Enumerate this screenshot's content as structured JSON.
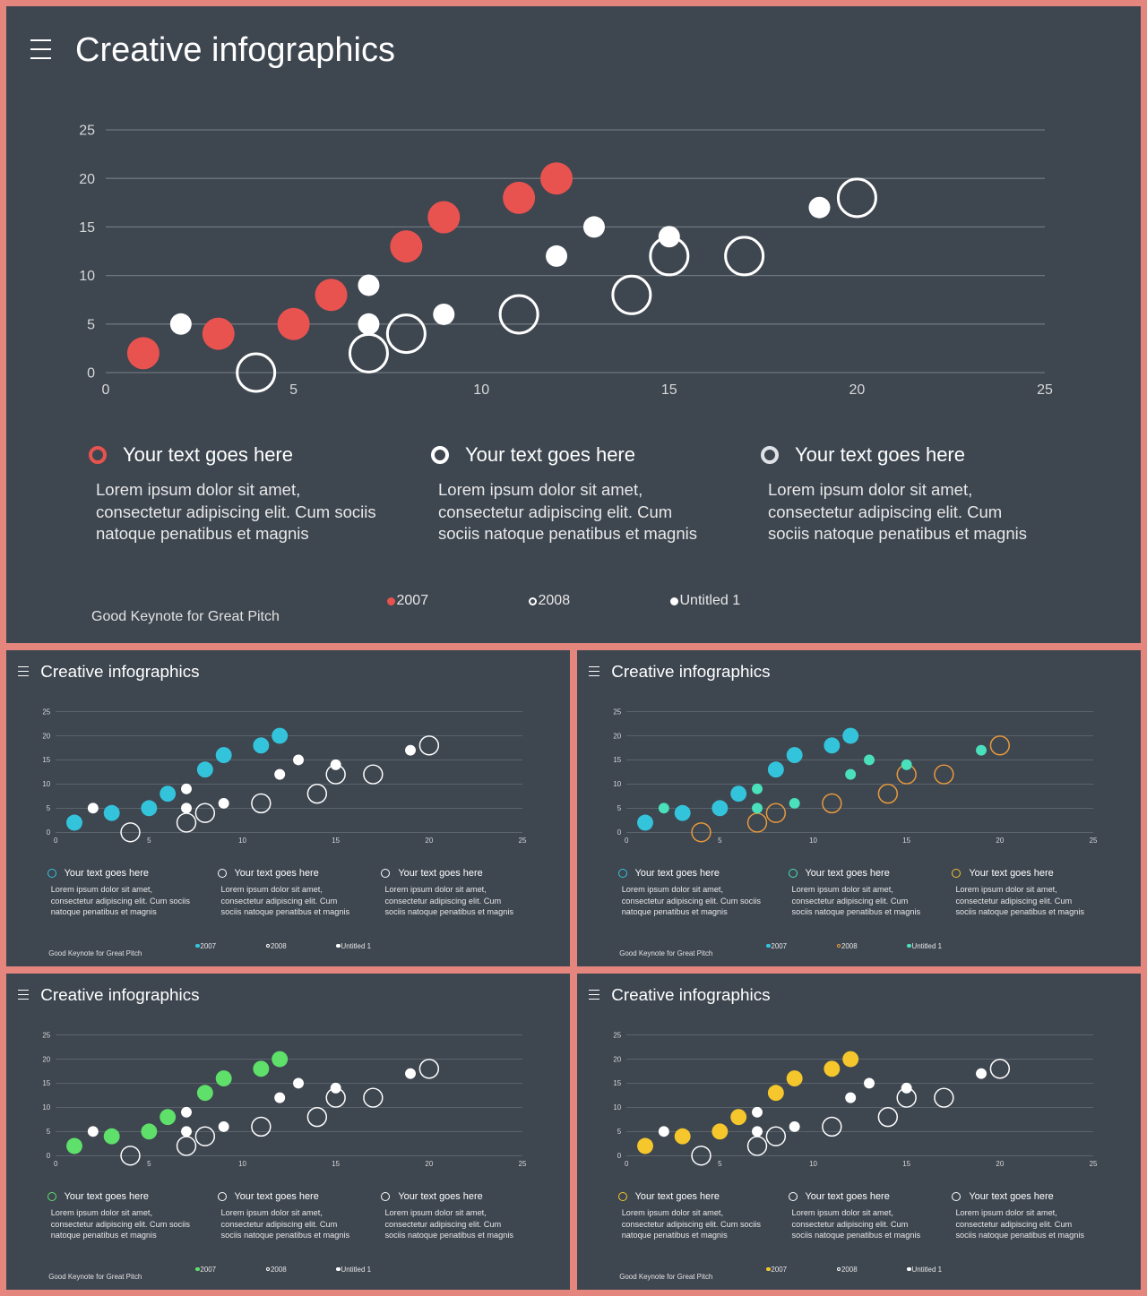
{
  "slides": [
    {
      "title": "Creative infographics",
      "footer": "Good Keynote for Great Pitch",
      "accent": "#e8534f",
      "c2008": "#ffffff",
      "cUnt": "#ffffff",
      "ring2": "#ffffff",
      "ring3": "#dfe2e6"
    },
    {
      "title": "Creative infographics",
      "footer": "Good Keynote for Great Pitch",
      "accent": "#33c4dc",
      "c2008": "#ffffff",
      "cUnt": "#ffffff",
      "ring2": "#ffffff",
      "ring3": "#ffffff"
    },
    {
      "title": "Creative infographics",
      "footer": "Good Keynote for Great Pitch",
      "accent": "#33c4dc",
      "c2008": "#e89a3c",
      "cUnt": "#4ae0bb",
      "ring2": "#4ae0bb",
      "ring3": "#f2c230"
    },
    {
      "title": "Creative infographics",
      "footer": "Good Keynote for Great Pitch",
      "accent": "#5ee06a",
      "c2008": "#ffffff",
      "cUnt": "#ffffff",
      "ring2": "#ffffff",
      "ring3": "#ffffff"
    },
    {
      "title": "Creative infographics",
      "footer": "Good Keynote for Great Pitch",
      "accent": "#f5c72c",
      "c2008": "#ffffff",
      "cUnt": "#ffffff",
      "ring2": "#ffffff",
      "ring3": "#ffffff"
    }
  ],
  "text_blocks": [
    {
      "heading": "Your text goes here",
      "body": [
        "Lorem ipsum dolor sit amet,",
        "consectetur adipiscing elit. Cum sociis",
        "natoque penatibus et magnis"
      ]
    },
    {
      "heading": "Your text goes here",
      "body": [
        "Lorem ipsum dolor sit amet,",
        "consectetur adipiscing elit. Cum",
        "sociis natoque penatibus et magnis"
      ]
    },
    {
      "heading": "Your text goes here",
      "body": [
        "Lorem ipsum dolor sit amet,",
        "consectetur adipiscing elit. Cum",
        "sociis natoque penatibus et magnis"
      ]
    }
  ],
  "chart_data": {
    "type": "scatter",
    "xlim": [
      0,
      25
    ],
    "ylim": [
      0,
      25
    ],
    "xticks": [
      "0",
      "5",
      "10",
      "15",
      "20",
      "25"
    ],
    "yticks": [
      "0",
      "5",
      "10",
      "15",
      "20",
      "25"
    ],
    "grid": true,
    "legend_position": "bottom",
    "series": [
      {
        "name": "2007",
        "marker": "filled-large",
        "points": [
          [
            1,
            2
          ],
          [
            3,
            4
          ],
          [
            5,
            5
          ],
          [
            6,
            8
          ],
          [
            8,
            13
          ],
          [
            9,
            16
          ],
          [
            11,
            18
          ],
          [
            12,
            20
          ]
        ]
      },
      {
        "name": "2008",
        "marker": "ring",
        "points": [
          [
            4,
            0
          ],
          [
            7,
            2
          ],
          [
            8,
            4
          ],
          [
            11,
            6
          ],
          [
            14,
            8
          ],
          [
            15,
            12
          ],
          [
            17,
            12
          ],
          [
            20,
            18
          ]
        ]
      },
      {
        "name": "Untitled 1",
        "marker": "filled-small",
        "points": [
          [
            2,
            5
          ],
          [
            7,
            5
          ],
          [
            7,
            9
          ],
          [
            9,
            6
          ],
          [
            12,
            12
          ],
          [
            13,
            15
          ],
          [
            15,
            14
          ],
          [
            19,
            17
          ]
        ]
      }
    ]
  }
}
